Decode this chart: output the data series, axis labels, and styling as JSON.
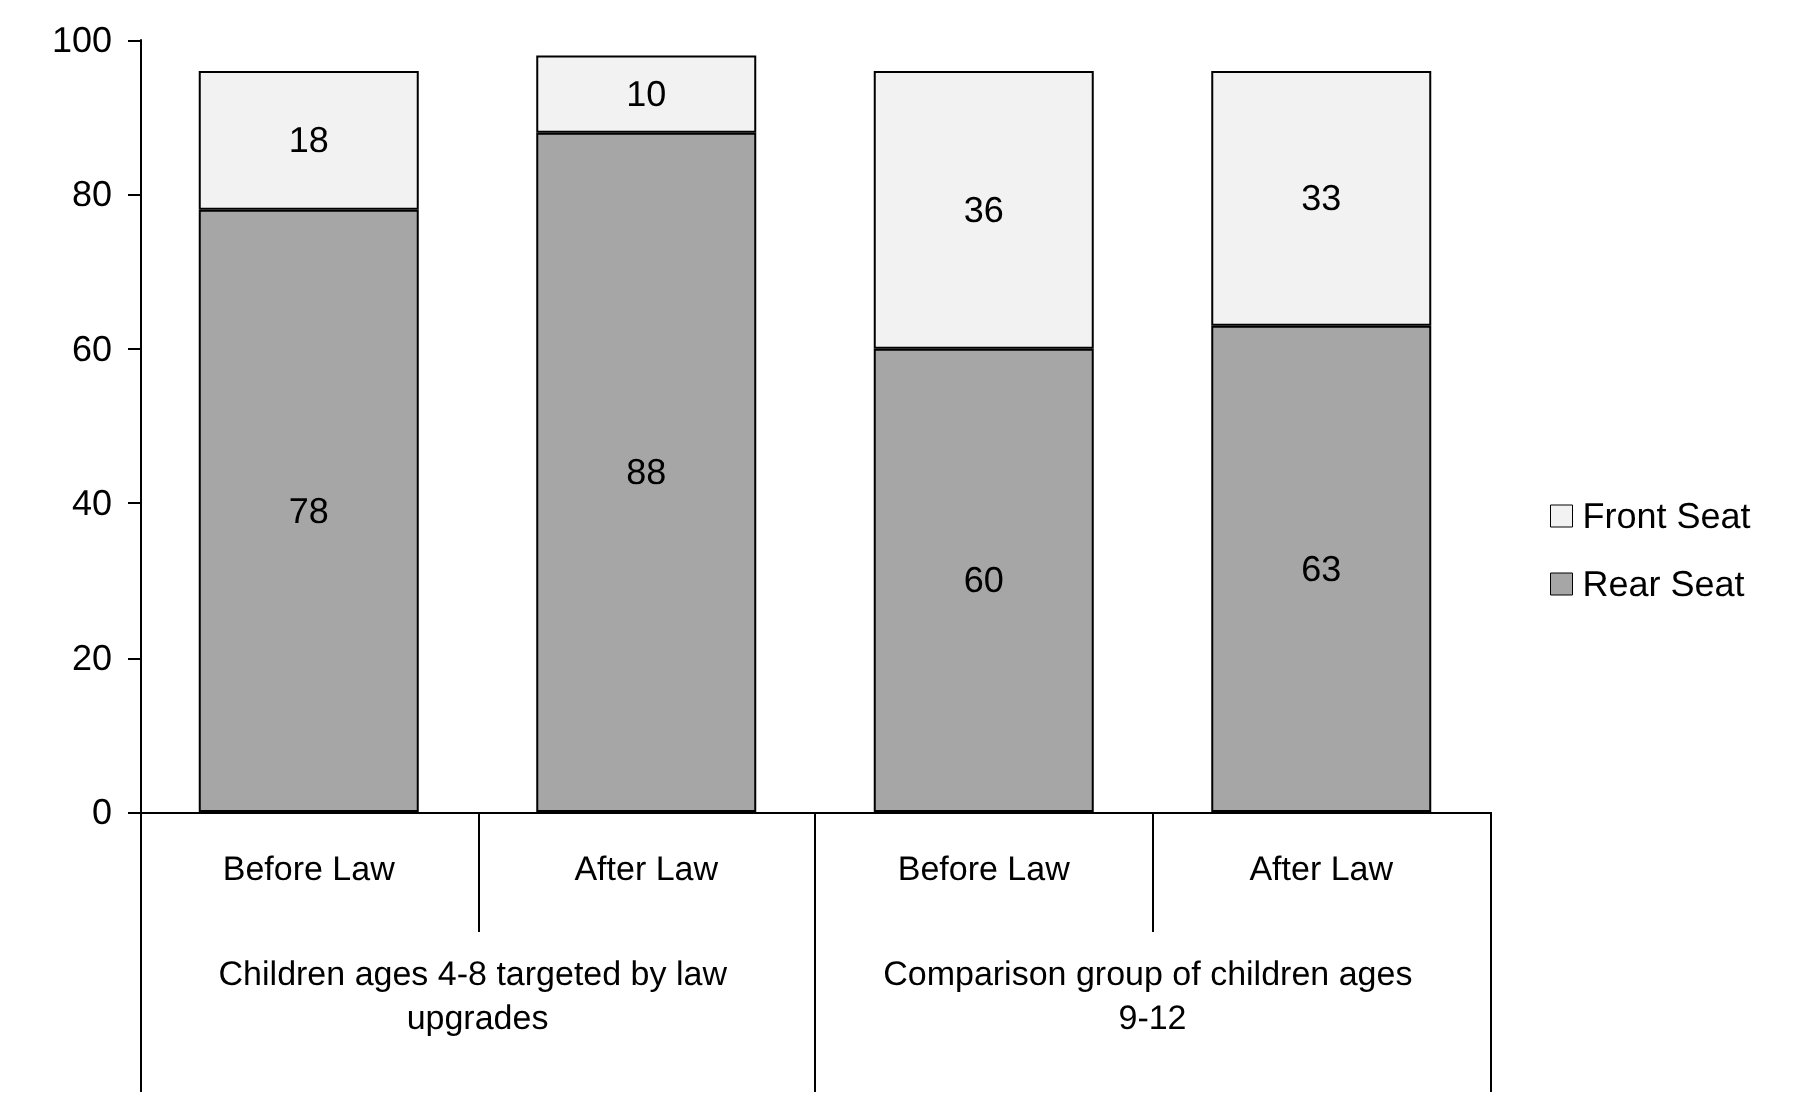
{
  "chart_data": {
    "type": "bar",
    "stacked": true,
    "categories": [
      "Before Law",
      "After Law",
      "Before Law",
      "After Law"
    ],
    "annotations": [
      "Children ages 4-8 targeted by law upgrades",
      "Comparison group of children ages 9-12"
    ],
    "series": [
      {
        "name": "Rear Seat",
        "color": "#a6a6a6",
        "values": [
          78,
          88,
          60,
          63
        ]
      },
      {
        "name": "Front Seat",
        "color": "#f2f2f2",
        "values": [
          18,
          10,
          36,
          33
        ]
      }
    ],
    "ylim": [
      0,
      100
    ],
    "yticks": [
      0,
      20,
      40,
      60,
      80,
      100
    ],
    "grid": false,
    "legend": "right",
    "data_labels": true
  }
}
